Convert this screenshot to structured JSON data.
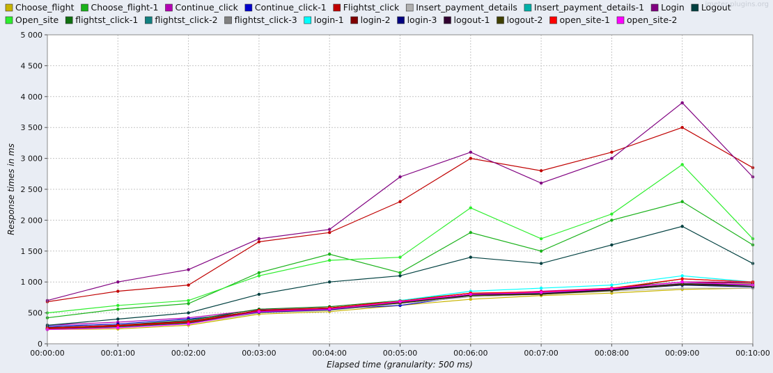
{
  "watermark": "jmeter-plugins.org",
  "chart_data": {
    "type": "line",
    "title": "",
    "xlabel": "Elapsed time (granularity: 500 ms)",
    "ylabel": "Response times in ms",
    "xlim": [
      0,
      600
    ],
    "ylim": [
      0,
      5000
    ],
    "x_ticks": [
      0,
      60,
      120,
      180,
      240,
      300,
      360,
      420,
      480,
      540,
      600
    ],
    "x_tick_labels": [
      "00:00:00",
      "00:01:00",
      "00:02:00",
      "00:03:00",
      "00:04:00",
      "00:05:00",
      "00:06:00",
      "00:07:00",
      "00:08:00",
      "00:09:00",
      "00:10:00"
    ],
    "y_ticks": [
      0,
      500,
      1000,
      1500,
      2000,
      2500,
      3000,
      3500,
      4000,
      4500,
      5000
    ],
    "y_tick_labels": [
      "0",
      "500",
      "1 000",
      "1 500",
      "2 000",
      "2 500",
      "3 000",
      "3 500",
      "4 000",
      "4 500",
      "5 000"
    ],
    "grid": true,
    "legend_position": "top",
    "series": [
      {
        "name": "Choose_flight",
        "color": "#c8b400",
        "x": [
          0,
          60,
          120,
          180,
          240,
          300,
          360,
          420,
          480,
          540,
          600
        ],
        "values": [
          230,
          240,
          300,
          480,
          520,
          620,
          720,
          780,
          820,
          880,
          900
        ]
      },
      {
        "name": "Choose_flight-1",
        "color": "#1ab21a",
        "x": [
          0,
          60,
          120,
          180,
          240,
          300,
          360,
          420,
          480,
          540,
          600
        ],
        "values": [
          420,
          560,
          650,
          1150,
          1450,
          1150,
          1800,
          1500,
          2000,
          2300,
          1600
        ]
      },
      {
        "name": "Continue_click",
        "color": "#b400b4",
        "x": [
          0,
          60,
          120,
          180,
          240,
          300,
          360,
          420,
          480,
          540,
          600
        ],
        "values": [
          300,
          350,
          420,
          550,
          580,
          650,
          800,
          850,
          900,
          1000,
          1000
        ]
      },
      {
        "name": "Continue_click-1",
        "color": "#0000cd",
        "x": [
          0,
          60,
          120,
          180,
          240,
          300,
          360,
          420,
          480,
          540,
          600
        ],
        "values": [
          280,
          320,
          400,
          520,
          560,
          620,
          780,
          820,
          880,
          950,
          950
        ]
      },
      {
        "name": "Flightst_click",
        "color": "#c00000",
        "x": [
          0,
          60,
          120,
          180,
          240,
          300,
          360,
          420,
          480,
          540,
          600
        ],
        "values": [
          680,
          850,
          950,
          1650,
          1800,
          2300,
          3000,
          2800,
          3100,
          3500,
          2850
        ]
      },
      {
        "name": "Insert_payment_details",
        "color": "#b0b0b0",
        "x": [
          0,
          60,
          120,
          180,
          240,
          300,
          360,
          420,
          480,
          540,
          600
        ],
        "values": [
          230,
          260,
          320,
          500,
          540,
          650,
          760,
          800,
          850,
          900,
          900
        ]
      },
      {
        "name": "Insert_payment_details-1",
        "color": "#00b0a8",
        "x": [
          0,
          60,
          120,
          180,
          240,
          300,
          360,
          420,
          480,
          540,
          600
        ],
        "values": [
          230,
          270,
          330,
          520,
          560,
          680,
          780,
          820,
          900,
          950,
          950
        ]
      },
      {
        "name": "Login",
        "color": "#800080",
        "x": [
          0,
          60,
          120,
          180,
          240,
          300,
          360,
          420,
          480,
          540,
          600
        ],
        "values": [
          700,
          1000,
          1200,
          1700,
          1850,
          2700,
          3100,
          2600,
          3000,
          3900,
          2700
        ]
      },
      {
        "name": "Logout",
        "color": "#004040",
        "x": [
          0,
          60,
          120,
          180,
          240,
          300,
          360,
          420,
          480,
          540,
          600
        ],
        "values": [
          300,
          400,
          500,
          800,
          1000,
          1100,
          1400,
          1300,
          1600,
          1900,
          1300
        ]
      },
      {
        "name": "Open_site",
        "color": "#2dee2d",
        "x": [
          0,
          60,
          120,
          180,
          240,
          300,
          360,
          420,
          480,
          540,
          600
        ],
        "values": [
          500,
          620,
          700,
          1100,
          1350,
          1400,
          2200,
          1700,
          2100,
          2900,
          1700
        ]
      },
      {
        "name": "flightst_click-1",
        "color": "#107010",
        "x": [
          0,
          60,
          120,
          180,
          240,
          300,
          360,
          420,
          480,
          540,
          600
        ],
        "values": [
          260,
          300,
          380,
          560,
          600,
          700,
          820,
          800,
          880,
          1050,
          1000
        ]
      },
      {
        "name": "flightst_click-2",
        "color": "#108080",
        "x": [
          0,
          60,
          120,
          180,
          240,
          300,
          360,
          420,
          480,
          540,
          600
        ],
        "values": [
          240,
          290,
          360,
          540,
          580,
          680,
          800,
          820,
          900,
          1000,
          950
        ]
      },
      {
        "name": "flightst_click-3",
        "color": "#808080",
        "x": [
          0,
          60,
          120,
          180,
          240,
          300,
          360,
          420,
          480,
          540,
          600
        ],
        "values": [
          250,
          290,
          370,
          530,
          570,
          670,
          790,
          810,
          880,
          980,
          960
        ]
      },
      {
        "name": "login-1",
        "color": "#00ffff",
        "x": [
          0,
          60,
          120,
          180,
          240,
          300,
          360,
          420,
          480,
          540,
          600
        ],
        "values": [
          240,
          280,
          350,
          520,
          560,
          700,
          850,
          900,
          950,
          1100,
          1000
        ]
      },
      {
        "name": "login-2",
        "color": "#800000",
        "x": [
          0,
          60,
          120,
          180,
          240,
          300,
          360,
          420,
          480,
          540,
          600
        ],
        "values": [
          260,
          300,
          360,
          540,
          580,
          690,
          820,
          830,
          900,
          1000,
          980
        ]
      },
      {
        "name": "login-3",
        "color": "#000080",
        "x": [
          0,
          60,
          120,
          180,
          240,
          300,
          360,
          420,
          480,
          540,
          600
        ],
        "values": [
          240,
          280,
          340,
          510,
          550,
          660,
          780,
          800,
          870,
          950,
          920
        ]
      },
      {
        "name": "logout-1",
        "color": "#300030",
        "x": [
          0,
          60,
          120,
          180,
          240,
          300,
          360,
          420,
          480,
          540,
          600
        ],
        "values": [
          250,
          290,
          350,
          530,
          570,
          670,
          790,
          810,
          880,
          970,
          950
        ]
      },
      {
        "name": "logout-2",
        "color": "#404000",
        "x": [
          0,
          60,
          120,
          180,
          240,
          300,
          360,
          420,
          480,
          540,
          600
        ],
        "values": [
          240,
          280,
          340,
          520,
          560,
          660,
          780,
          800,
          860,
          960,
          930
        ]
      },
      {
        "name": "open_site-1",
        "color": "#ff0000",
        "x": [
          0,
          60,
          120,
          180,
          240,
          300,
          360,
          420,
          480,
          540,
          600
        ],
        "values": [
          250,
          290,
          350,
          540,
          580,
          690,
          820,
          840,
          900,
          1050,
          1000
        ]
      },
      {
        "name": "open_site-2",
        "color": "#ff00ff",
        "x": [
          0,
          60,
          120,
          180,
          240,
          300,
          360,
          420,
          480,
          540,
          600
        ],
        "values": [
          230,
          260,
          320,
          520,
          560,
          680,
          800,
          830,
          890,
          1000,
          950
        ]
      }
    ]
  }
}
